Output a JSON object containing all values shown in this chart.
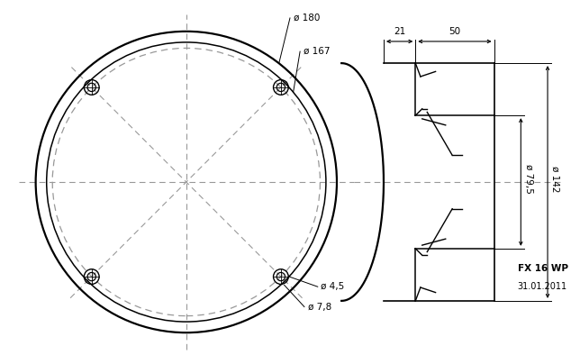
{
  "bg_color": "#ffffff",
  "line_color": "#000000",
  "dash_color": "#999999",
  "fig_width": 6.44,
  "fig_height": 4.04,
  "dpi": 100,
  "label_180": "ø 180",
  "label_167": "ø 167",
  "label_45": "ø 4,5",
  "label_78": "ø 7,8",
  "label_21": "21",
  "label_50": "50",
  "label_795": "ø 79,5",
  "label_142": "ø 142",
  "note_model": "FX 16 WP",
  "note_date": "31.01.2011",
  "xlim": [
    -108,
    230
  ],
  "ylim": [
    -108,
    108
  ]
}
